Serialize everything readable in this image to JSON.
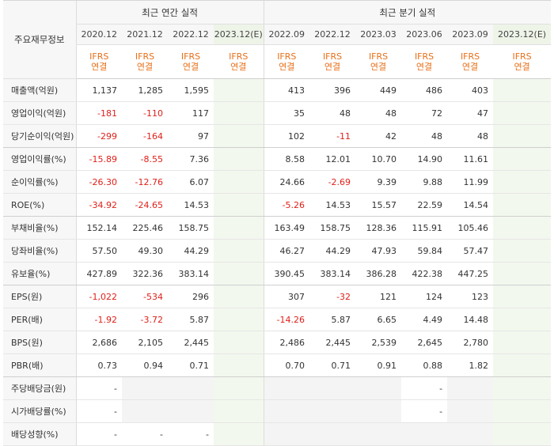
{
  "corner_label": "주요재무정보",
  "groups": [
    {
      "label": "최근 연간 실적"
    },
    {
      "label": "최근 분기 실적"
    }
  ],
  "periods": [
    "2020.12",
    "2021.12",
    "2022.12",
    "2023.12(E)",
    "2022.09",
    "2022.12",
    "2023.03",
    "2023.06",
    "2023.09",
    "2023.12(E)"
  ],
  "standard": {
    "line1": "IFRS",
    "line2": "연결"
  },
  "colors": {
    "negative": "#e0201a",
    "ifrs": "#e8701a",
    "estimate_bg": "#f3f8ee"
  },
  "rows": [
    {
      "label": "매출액(억원)",
      "values": [
        "1,137",
        "1,285",
        "1,595",
        "",
        "413",
        "396",
        "449",
        "486",
        "403",
        ""
      ]
    },
    {
      "label": "영업이익(억원)",
      "values": [
        "-181",
        "-110",
        "117",
        "",
        "35",
        "48",
        "48",
        "72",
        "47",
        ""
      ]
    },
    {
      "label": "당기순이익(억원)",
      "values": [
        "-299",
        "-164",
        "97",
        "",
        "102",
        "-11",
        "42",
        "48",
        "48",
        ""
      ]
    },
    {
      "label": "영업이익률(%)",
      "values": [
        "-15.89",
        "-8.55",
        "7.36",
        "",
        "8.58",
        "12.01",
        "10.70",
        "14.90",
        "11.61",
        ""
      ]
    },
    {
      "label": "순이익률(%)",
      "values": [
        "-26.30",
        "-12.76",
        "6.07",
        "",
        "24.66",
        "-2.69",
        "9.39",
        "9.88",
        "11.99",
        ""
      ]
    },
    {
      "label": "ROE(%)",
      "values": [
        "-34.92",
        "-24.65",
        "14.53",
        "",
        "-5.26",
        "14.53",
        "15.57",
        "22.59",
        "14.54",
        ""
      ]
    },
    {
      "label": "부채비율(%)",
      "values": [
        "152.14",
        "225.46",
        "158.75",
        "",
        "163.49",
        "158.75",
        "128.36",
        "115.91",
        "105.46",
        ""
      ]
    },
    {
      "label": "당좌비율(%)",
      "values": [
        "57.50",
        "49.30",
        "44.29",
        "",
        "46.27",
        "44.29",
        "47.93",
        "59.84",
        "57.47",
        ""
      ]
    },
    {
      "label": "유보율(%)",
      "values": [
        "427.89",
        "322.36",
        "383.14",
        "",
        "390.45",
        "383.14",
        "386.28",
        "422.38",
        "447.25",
        ""
      ]
    },
    {
      "label": "EPS(원)",
      "values": [
        "-1,022",
        "-534",
        "296",
        "",
        "307",
        "-32",
        "121",
        "124",
        "123",
        ""
      ]
    },
    {
      "label": "PER(배)",
      "values": [
        "-1.92",
        "-3.72",
        "5.87",
        "",
        "-14.26",
        "5.87",
        "6.65",
        "4.49",
        "14.48",
        ""
      ]
    },
    {
      "label": "BPS(원)",
      "values": [
        "2,686",
        "2,105",
        "2,445",
        "",
        "2,486",
        "2,445",
        "2,539",
        "2,645",
        "2,780",
        ""
      ]
    },
    {
      "label": "PBR(배)",
      "values": [
        "0.73",
        "0.94",
        "0.71",
        "",
        "0.70",
        "0.71",
        "0.91",
        "0.88",
        "1.82",
        ""
      ]
    },
    {
      "label": "주당배당금(원)",
      "values": [
        "-",
        "",
        "",
        "",
        "",
        "",
        "",
        "-",
        "",
        ""
      ]
    },
    {
      "label": "시가배당률(%)",
      "values": [
        "-",
        "",
        "",
        "",
        "",
        "",
        "",
        "-",
        "",
        ""
      ]
    },
    {
      "label": "배당성향(%)",
      "values": [
        "-",
        "-",
        "-",
        "",
        "",
        "",
        "",
        "",
        "",
        ""
      ]
    }
  ]
}
